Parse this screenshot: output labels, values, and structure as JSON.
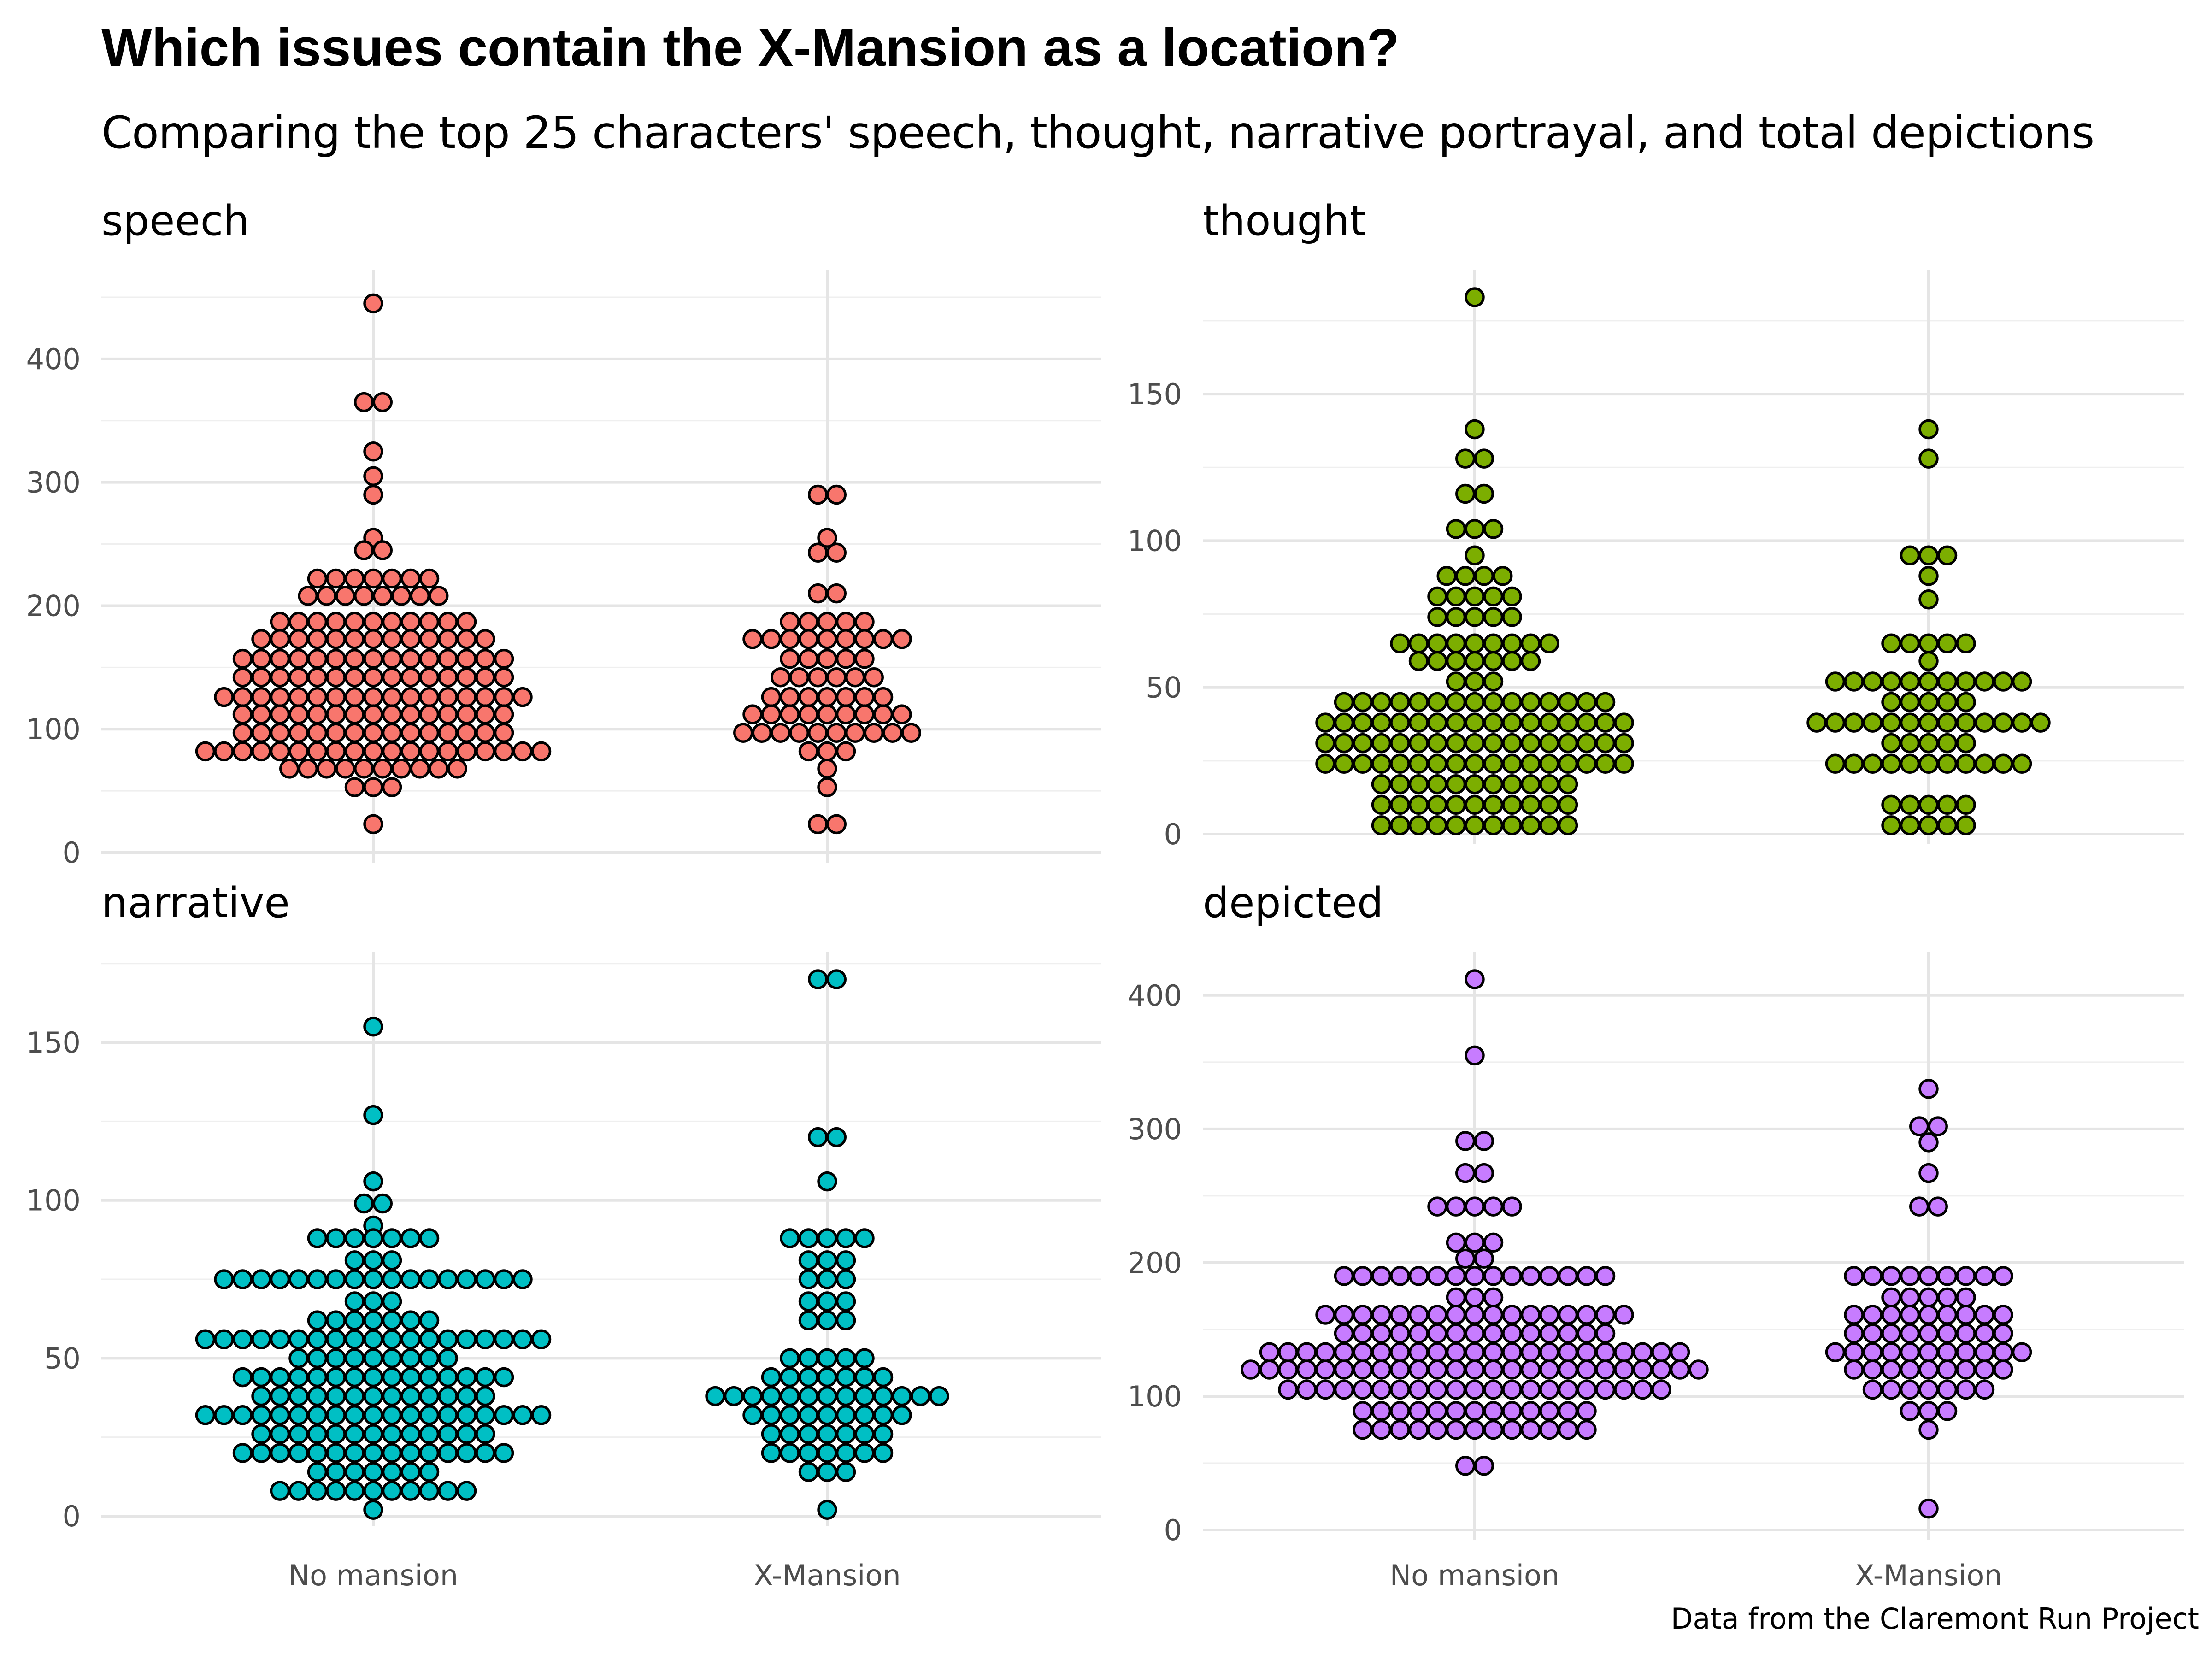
{
  "header": {
    "title": "Which issues contain the X-Mansion as a location?",
    "subtitle": "Comparing the top 25 characters' speech, thought, narrative portrayal, and total depictions",
    "caption": "Data from the Claremont Run Project"
  },
  "colors": {
    "speech": "#F8766D",
    "thought": "#7CAE00",
    "narrative": "#00BFC4",
    "depicted": "#C77CFF"
  },
  "chart_data": [
    {
      "type": "scatter",
      "title": "speech",
      "categories": [
        "No mansion",
        "X-Mansion"
      ],
      "ylim": [
        0,
        450
      ],
      "y_ticks": [
        0,
        100,
        200,
        300,
        400
      ],
      "color": "#F8766D",
      "groups": [
        {
          "category": "No mansion",
          "rows": [
            [
              445,
              1
            ],
            [
              365,
              2
            ],
            [
              325,
              1
            ],
            [
              305,
              1
            ],
            [
              290,
              1
            ],
            [
              255,
              1
            ],
            [
              245,
              2
            ],
            [
              222,
              7
            ],
            [
              208,
              8
            ],
            [
              187,
              11
            ],
            [
              173,
              13
            ],
            [
              157,
              15
            ],
            [
              142,
              15
            ],
            [
              126,
              17
            ],
            [
              112,
              15
            ],
            [
              97,
              15
            ],
            [
              82,
              19
            ],
            [
              68,
              10
            ],
            [
              53,
              3
            ],
            [
              23,
              1
            ]
          ]
        },
        {
          "category": "X-Mansion",
          "rows": [
            [
              290,
              2
            ],
            [
              255,
              1
            ],
            [
              243,
              2
            ],
            [
              210,
              2
            ],
            [
              187,
              5
            ],
            [
              173,
              9
            ],
            [
              157,
              5
            ],
            [
              142,
              6
            ],
            [
              126,
              7
            ],
            [
              112,
              9
            ],
            [
              97,
              10
            ],
            [
              82,
              3
            ],
            [
              68,
              1
            ],
            [
              53,
              1
            ],
            [
              23,
              2
            ]
          ]
        }
      ]
    },
    {
      "type": "scatter",
      "title": "thought",
      "categories": [
        "No mansion",
        "X-Mansion"
      ],
      "ylim": [
        0,
        183
      ],
      "y_ticks": [
        0,
        50,
        100,
        150
      ],
      "color": "#7CAE00",
      "groups": [
        {
          "category": "No mansion",
          "rows": [
            [
              183,
              1
            ],
            [
              138,
              1
            ],
            [
              128,
              2
            ],
            [
              116,
              2
            ],
            [
              104,
              3
            ],
            [
              95,
              1
            ],
            [
              88,
              4
            ],
            [
              81,
              5
            ],
            [
              74,
              5
            ],
            [
              65,
              9
            ],
            [
              59,
              7
            ],
            [
              52,
              3
            ],
            [
              45,
              15
            ],
            [
              38,
              17
            ],
            [
              31,
              17
            ],
            [
              24,
              17
            ],
            [
              17,
              11
            ],
            [
              10,
              11
            ],
            [
              3,
              11
            ]
          ]
        },
        {
          "category": "X-Mansion",
          "rows": [
            [
              138,
              1
            ],
            [
              128,
              1
            ],
            [
              95,
              3
            ],
            [
              88,
              1
            ],
            [
              80,
              1
            ],
            [
              65,
              5
            ],
            [
              59,
              1
            ],
            [
              52,
              11
            ],
            [
              45,
              5
            ],
            [
              38,
              13
            ],
            [
              31,
              5
            ],
            [
              24,
              11
            ],
            [
              10,
              5
            ],
            [
              3,
              5
            ]
          ]
        }
      ]
    },
    {
      "type": "scatter",
      "title": "narrative",
      "categories": [
        "No mansion",
        "X-Mansion"
      ],
      "ylim": [
        0,
        170
      ],
      "y_ticks": [
        0,
        50,
        100,
        150
      ],
      "color": "#00BFC4",
      "groups": [
        {
          "category": "No mansion",
          "rows": [
            [
              155,
              1
            ],
            [
              127,
              1
            ],
            [
              106,
              1
            ],
            [
              99,
              2
            ],
            [
              92,
              1
            ],
            [
              88,
              7
            ],
            [
              81,
              3
            ],
            [
              75,
              17
            ],
            [
              68,
              3
            ],
            [
              62,
              7
            ],
            [
              56,
              19
            ],
            [
              50,
              9
            ],
            [
              44,
              15
            ],
            [
              38,
              13
            ],
            [
              32,
              19
            ],
            [
              26,
              13
            ],
            [
              20,
              15
            ],
            [
              14,
              7
            ],
            [
              8,
              11
            ],
            [
              2,
              1
            ]
          ]
        },
        {
          "category": "X-Mansion",
          "rows": [
            [
              170,
              2
            ],
            [
              120,
              2
            ],
            [
              106,
              1
            ],
            [
              88,
              5
            ],
            [
              81,
              3
            ],
            [
              75,
              3
            ],
            [
              68,
              3
            ],
            [
              62,
              3
            ],
            [
              50,
              5
            ],
            [
              44,
              7
            ],
            [
              38,
              13
            ],
            [
              32,
              9
            ],
            [
              26,
              7
            ],
            [
              20,
              7
            ],
            [
              14,
              3
            ],
            [
              2,
              1
            ]
          ]
        }
      ]
    },
    {
      "type": "scatter",
      "title": "depicted",
      "categories": [
        "No mansion",
        "X-Mansion"
      ],
      "ylim": [
        0,
        412
      ],
      "y_ticks": [
        0,
        100,
        200,
        300,
        400
      ],
      "color": "#C77CFF",
      "groups": [
        {
          "category": "No mansion",
          "rows": [
            [
              412,
              1
            ],
            [
              355,
              1
            ],
            [
              291,
              2
            ],
            [
              267,
              2
            ],
            [
              242,
              5
            ],
            [
              215,
              3
            ],
            [
              203,
              2
            ],
            [
              190,
              15
            ],
            [
              174,
              3
            ],
            [
              161,
              17
            ],
            [
              147,
              15
            ],
            [
              133,
              23
            ],
            [
              120,
              25
            ],
            [
              105,
              21
            ],
            [
              89,
              13
            ],
            [
              75,
              13
            ],
            [
              48,
              2
            ]
          ]
        },
        {
          "category": "X-Mansion",
          "rows": [
            [
              330,
              1
            ],
            [
              302,
              2
            ],
            [
              290,
              1
            ],
            [
              267,
              1
            ],
            [
              242,
              2
            ],
            [
              190,
              9
            ],
            [
              174,
              5
            ],
            [
              161,
              9
            ],
            [
              147,
              9
            ],
            [
              133,
              11
            ],
            [
              120,
              9
            ],
            [
              105,
              7
            ],
            [
              89,
              3
            ],
            [
              75,
              1
            ],
            [
              16,
              1
            ]
          ]
        }
      ]
    }
  ]
}
